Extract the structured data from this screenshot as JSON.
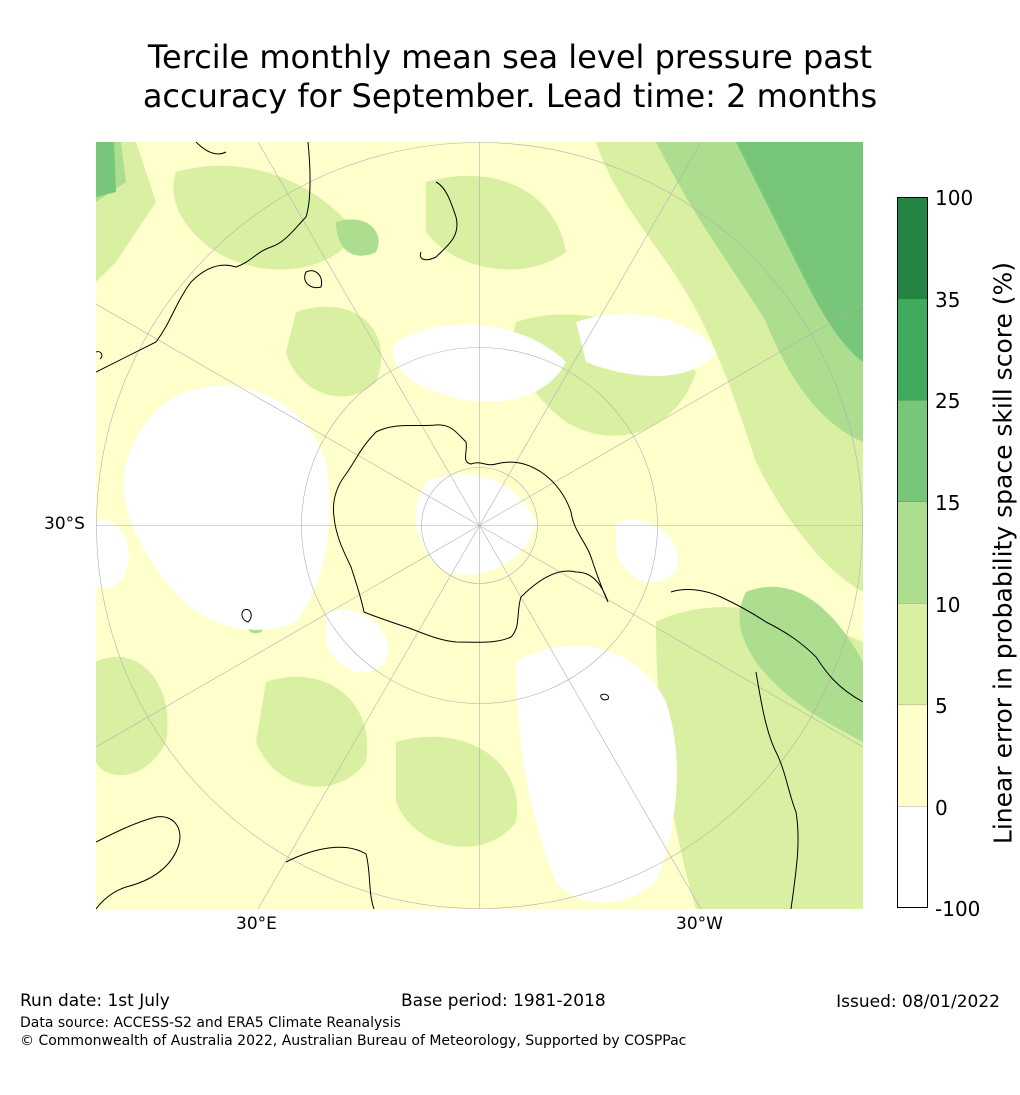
{
  "title": {
    "line1": "Tercile monthly mean sea level pressure past",
    "line2": "accuracy for September. Lead time: 2 months"
  },
  "map": {
    "projection": "south polar stereographic",
    "lat_label": "30°S",
    "lon_labels": [
      "30°E",
      "30°W"
    ],
    "gridlines": true
  },
  "colorbar": {
    "title": "Linear error in probability space skill score (%)",
    "ticks": [
      "100",
      "35",
      "25",
      "15",
      "10",
      "5",
      "0",
      "-100"
    ],
    "bins": [
      {
        "range": "35 to 100",
        "color": "#238443"
      },
      {
        "range": "25 to 35",
        "color": "#41ab5d"
      },
      {
        "range": "15 to 25",
        "color": "#78c679"
      },
      {
        "range": "10 to 15",
        "color": "#addd8e"
      },
      {
        "range": "5 to 10",
        "color": "#d9f0a3"
      },
      {
        "range": "0 to 5",
        "color": "#ffffcc"
      },
      {
        "range": "-100 to 0",
        "color": "#ffffff"
      }
    ]
  },
  "footer": {
    "run_date": "Run date: 1st July",
    "base_period": "Base period: 1981-2018",
    "issued": "Issued: 08/01/2022",
    "data_source": "Data source: ACCESS-S2 and ERA5 Climate Reanalysis",
    "copyright": "© Commonwealth of Australia 2022, Australian Bureau of Meteorology, Supported by COSPPac"
  }
}
